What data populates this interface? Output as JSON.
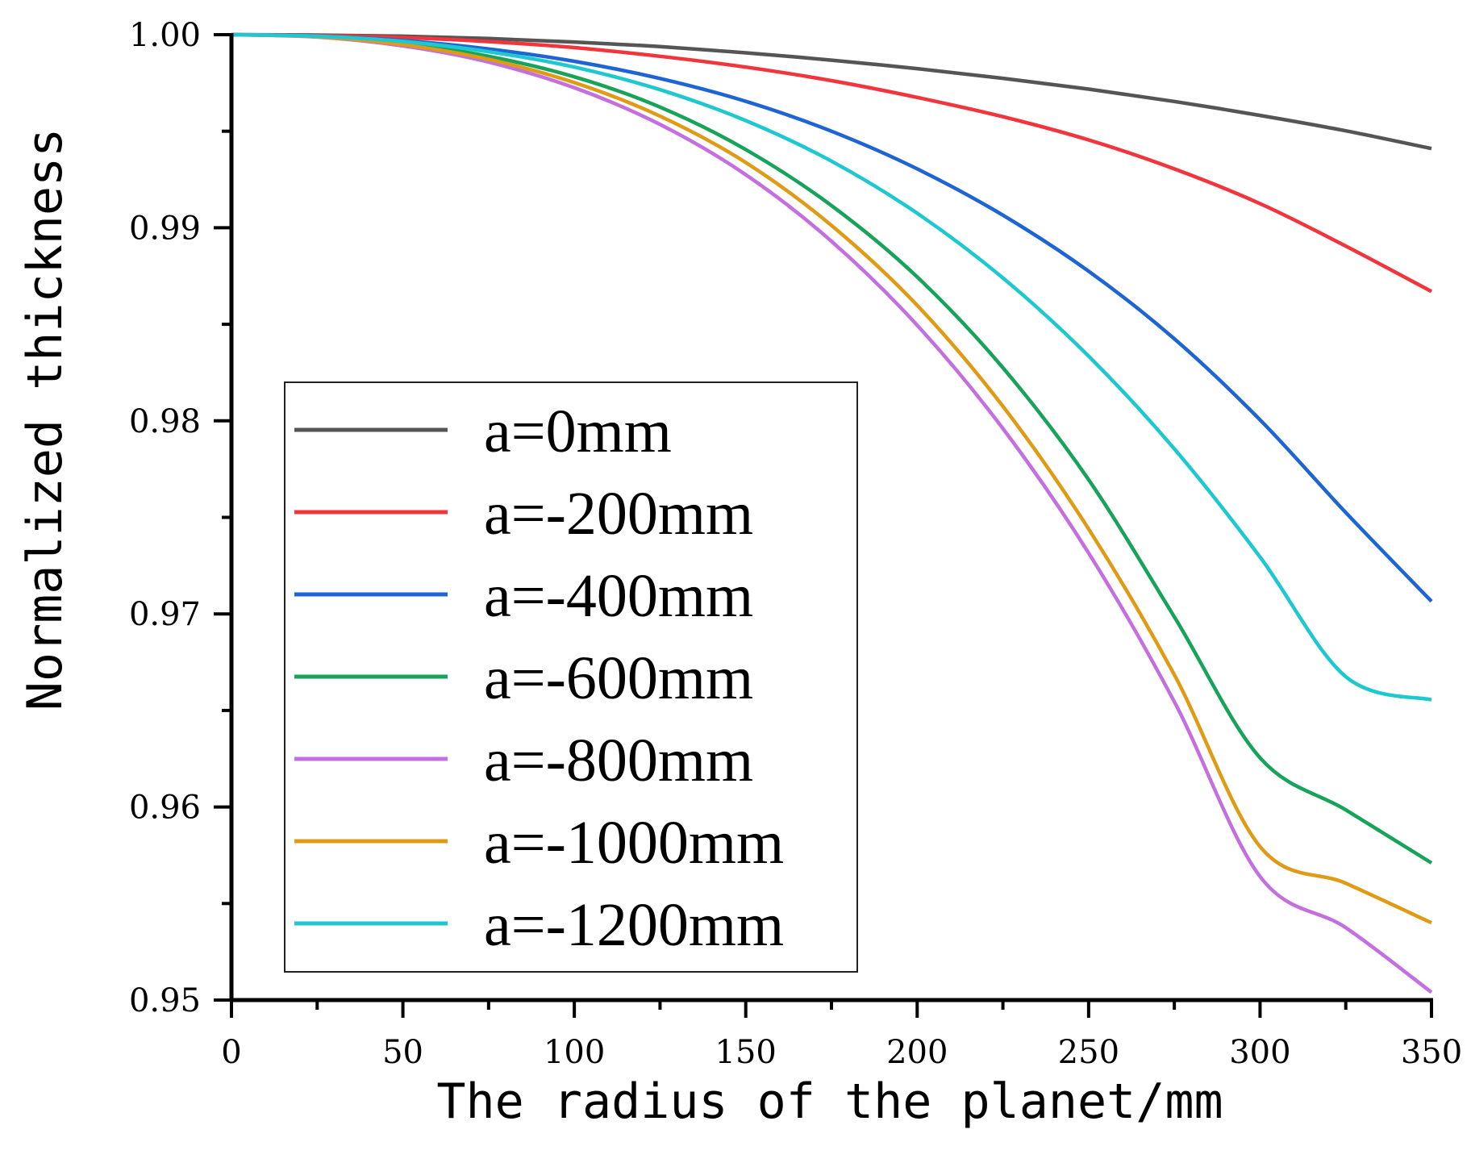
{
  "chart_data": {
    "type": "line",
    "title": "",
    "xlabel": "The radius of the planet/mm",
    "ylabel": "Normalized thickness",
    "xlim": [
      0,
      350
    ],
    "ylim": [
      0.95,
      1.0
    ],
    "xticks": [
      0,
      50,
      100,
      150,
      200,
      250,
      300,
      350
    ],
    "xtick_labels": [
      "0",
      "50",
      "100",
      "150",
      "200",
      "250",
      "300",
      "350"
    ],
    "yticks": [
      0.95,
      0.96,
      0.97,
      0.98,
      0.99,
      1.0
    ],
    "ytick_labels": [
      "0.95",
      "0.96",
      "0.97",
      "0.98",
      "0.99",
      "1.00"
    ],
    "grid": false,
    "legend_position": "lower-left",
    "x": [
      0,
      25,
      50,
      75,
      100,
      125,
      150,
      175,
      200,
      225,
      250,
      275,
      300,
      325,
      350
    ],
    "series": [
      {
        "name": "a=0mm",
        "color": "#555555",
        "values": [
          1.0,
          0.99998,
          0.99992,
          0.9998,
          0.99962,
          0.99938,
          0.99906,
          0.99868,
          0.99824,
          0.99774,
          0.99718,
          0.99654,
          0.99582,
          0.99502,
          0.9941
        ]
      },
      {
        "name": "a=-200mm",
        "color": "#f2353d",
        "values": [
          1.0,
          0.99996,
          0.99985,
          0.99964,
          0.99933,
          0.99888,
          0.99832,
          0.99762,
          0.99675,
          0.99575,
          0.99455,
          0.99305,
          0.99125,
          0.98905,
          0.9867
        ]
      },
      {
        "name": "a=-400mm",
        "color": "#1d64d4",
        "values": [
          1.0,
          0.99993,
          0.9997,
          0.99926,
          0.99862,
          0.99773,
          0.99655,
          0.995,
          0.99305,
          0.99065,
          0.98775,
          0.98425,
          0.98005,
          0.97525,
          0.97065
        ]
      },
      {
        "name": "a=-600mm",
        "color": "#17a35a",
        "values": [
          1.0,
          0.9999,
          0.99955,
          0.99888,
          0.99782,
          0.99625,
          0.99405,
          0.99115,
          0.98745,
          0.98275,
          0.97695,
          0.96985,
          0.96255,
          0.95985,
          0.9571
        ]
      },
      {
        "name": "a=-800mm",
        "color": "#c46fe0",
        "values": [
          1.0,
          0.99988,
          0.99942,
          0.99858,
          0.99725,
          0.99535,
          0.99275,
          0.9893,
          0.98495,
          0.9796,
          0.97315,
          0.96545,
          0.9564,
          0.95375,
          0.9504
        ]
      },
      {
        "name": "a=-1000mm",
        "color": "#e09b16",
        "values": [
          1.0,
          0.99989,
          0.99948,
          0.99872,
          0.99752,
          0.99578,
          0.99338,
          0.99012,
          0.98598,
          0.98075,
          0.9744,
          0.96685,
          0.95795,
          0.95605,
          0.954
        ]
      },
      {
        "name": "a=-1200mm",
        "color": "#1ec8d0",
        "values": [
          1.0,
          0.99992,
          0.99965,
          0.99912,
          0.99832,
          0.99715,
          0.99555,
          0.99345,
          0.99075,
          0.9874,
          0.98335,
          0.97855,
          0.97295,
          0.96675,
          0.96555
        ]
      }
    ]
  }
}
